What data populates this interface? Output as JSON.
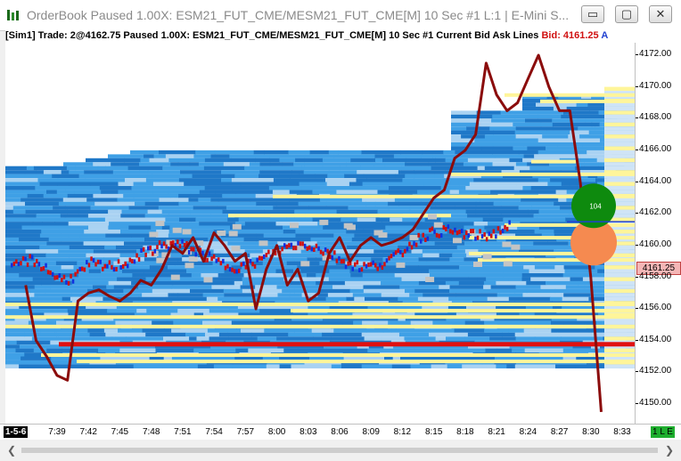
{
  "window": {
    "title": "OrderBook Paused 1.00X: ESM21_FUT_CME/MESM21_FUT_CME[M]  10 Sec  #1 L:1 | E-Mini S...",
    "minimize_glyph": "▭",
    "maximize_glyph": "▢",
    "close_glyph": "✕"
  },
  "infobar": {
    "text": "[Sim1]  Trade: 2@4162.75  Paused 1.00X: ESM21_FUT_CME/MESM21_FUT_CME[M]  10 Sec  #1 Current Bid Ask Lines ",
    "bid": "Bid: 4161.25",
    "ask": "A"
  },
  "price_axis": {
    "ticks": [
      "4172.00",
      "4170.00",
      "4168.00",
      "4166.00",
      "4164.00",
      "4162.00",
      "4160.00",
      "4158.00",
      "4156.00",
      "4154.00",
      "4152.00",
      "4150.00"
    ],
    "current_price": "4161.25"
  },
  "time_axis": {
    "ticks": [
      "7:39",
      "7:42",
      "7:45",
      "7:48",
      "7:51",
      "7:54",
      "7:57",
      "8:00",
      "8:03",
      "8:06",
      "8:09",
      "8:12",
      "8:15",
      "8:18",
      "8:21",
      "8:24",
      "8:27",
      "8:30",
      "8:33"
    ],
    "period_tag": "1-5-6",
    "le_tag": "1 L E"
  },
  "bubble": {
    "label": "104"
  },
  "chart_data": {
    "type": "line",
    "title": "",
    "xlabel": "",
    "ylabel": "",
    "ylim": [
      4149.5,
      4173
    ],
    "x": [
      "7:36",
      "7:37",
      "7:38",
      "7:39",
      "7:40",
      "7:41",
      "7:42",
      "7:43",
      "7:44",
      "7:45",
      "7:46",
      "7:47",
      "7:48",
      "7:49",
      "7:50",
      "7:51",
      "7:52",
      "7:53",
      "7:54",
      "7:55",
      "7:56",
      "7:57",
      "7:58",
      "7:59",
      "8:00",
      "8:01",
      "8:02",
      "8:03",
      "8:04",
      "8:05",
      "8:06",
      "8:07",
      "8:08",
      "8:09",
      "8:10",
      "8:11",
      "8:12",
      "8:13",
      "8:14",
      "8:15",
      "8:16",
      "8:17",
      "8:18",
      "8:19",
      "8:20",
      "8:21",
      "8:22",
      "8:23",
      "8:24",
      "8:25",
      "8:26",
      "8:27",
      "8:28",
      "8:29",
      "8:30",
      "8:31"
    ],
    "series": [
      {
        "values": [
          4157.5,
          4154.0,
          4153.0,
          4151.8,
          4151.5,
          4156.5,
          4157.0,
          4157.2,
          4156.8,
          4156.5,
          4157.0,
          4157.8,
          4157.5,
          4158.5,
          4160.0,
          4159.5,
          4160.5,
          4159.0,
          4160.8,
          4160.0,
          4159.0,
          4159.5,
          4156.0,
          4158.5,
          4160.0,
          4157.5,
          4158.5,
          4156.5,
          4157.0,
          4159.5,
          4160.5,
          4159.0,
          4160.0,
          4160.5,
          4160.0,
          4160.2,
          4160.5,
          4161.0,
          4162.0,
          4163.0,
          4163.5,
          4165.5,
          4166.0,
          4167.0,
          4171.5,
          4169.5,
          4168.5,
          4169.0,
          4170.5,
          4172.0,
          4170.0,
          4168.5,
          4168.5,
          4164.0,
          4158.0,
          4149.5
        ]
      }
    ]
  },
  "colors": {
    "heatmap_dark": "#1f78c8",
    "heatmap_mid": "#3fa0e6",
    "heatmap_light": "#a9d2f2",
    "heatmap_hot": "#fff59a",
    "price_line": "#8b0c0c",
    "level_line": "#e01010",
    "bid_bubble": "#0e8a0e",
    "ask_bubble": "#f58a50"
  }
}
